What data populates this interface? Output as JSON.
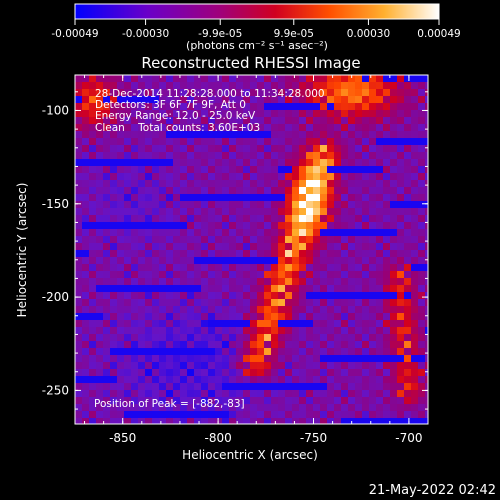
{
  "chart_data": {
    "type": "heatmap",
    "title": "Reconstructed RHESSI Image",
    "xlabel": "Heliocentric X (arcsec)",
    "ylabel": "Heliocentric Y (arcsec)",
    "xlim": [
      -875,
      -690
    ],
    "ylim": [
      -268,
      -81
    ],
    "x_ticks": [
      -850,
      -800,
      -750,
      -700
    ],
    "x_tick_labels": [
      "-850",
      "-800",
      "-750",
      "-700"
    ],
    "y_ticks": [
      -250,
      -200,
      -150,
      -100
    ],
    "y_tick_labels": [
      "-250",
      "-200",
      "-150",
      "-100"
    ],
    "colorbar": {
      "min": -0.00049,
      "max": 0.00049,
      "ticks": [
        -0.00049,
        -0.0003,
        -9.9e-05,
        9.9e-05,
        0.0003,
        0.00049
      ],
      "tick_labels": [
        "-0.00049",
        "-0.00030",
        "-9.9e-05",
        "9.9e-05",
        "0.00030",
        "0.00049"
      ],
      "unit_label": "(photons cm⁻² s⁻¹ asec⁻²)",
      "colors": [
        "#0000ff",
        "#6a00c8",
        "#b00060",
        "#ff2000",
        "#ff9000",
        "#ffffff"
      ]
    },
    "annotations": [
      "28-Dec-2014 11:28:28.000 to 11:34:28.000",
      "Detectors: 3F 6F 7F 9F, Att 0",
      "Energy Range: 12.0 - 25.0 keV",
      "Clean    Total counts: 3.60E+03"
    ],
    "peak_label": "Position of Peak = [-882,-83]",
    "peak": [
      -882,
      -83
    ]
  },
  "footer": {
    "timestamp": "21-May-2022 02:42"
  }
}
